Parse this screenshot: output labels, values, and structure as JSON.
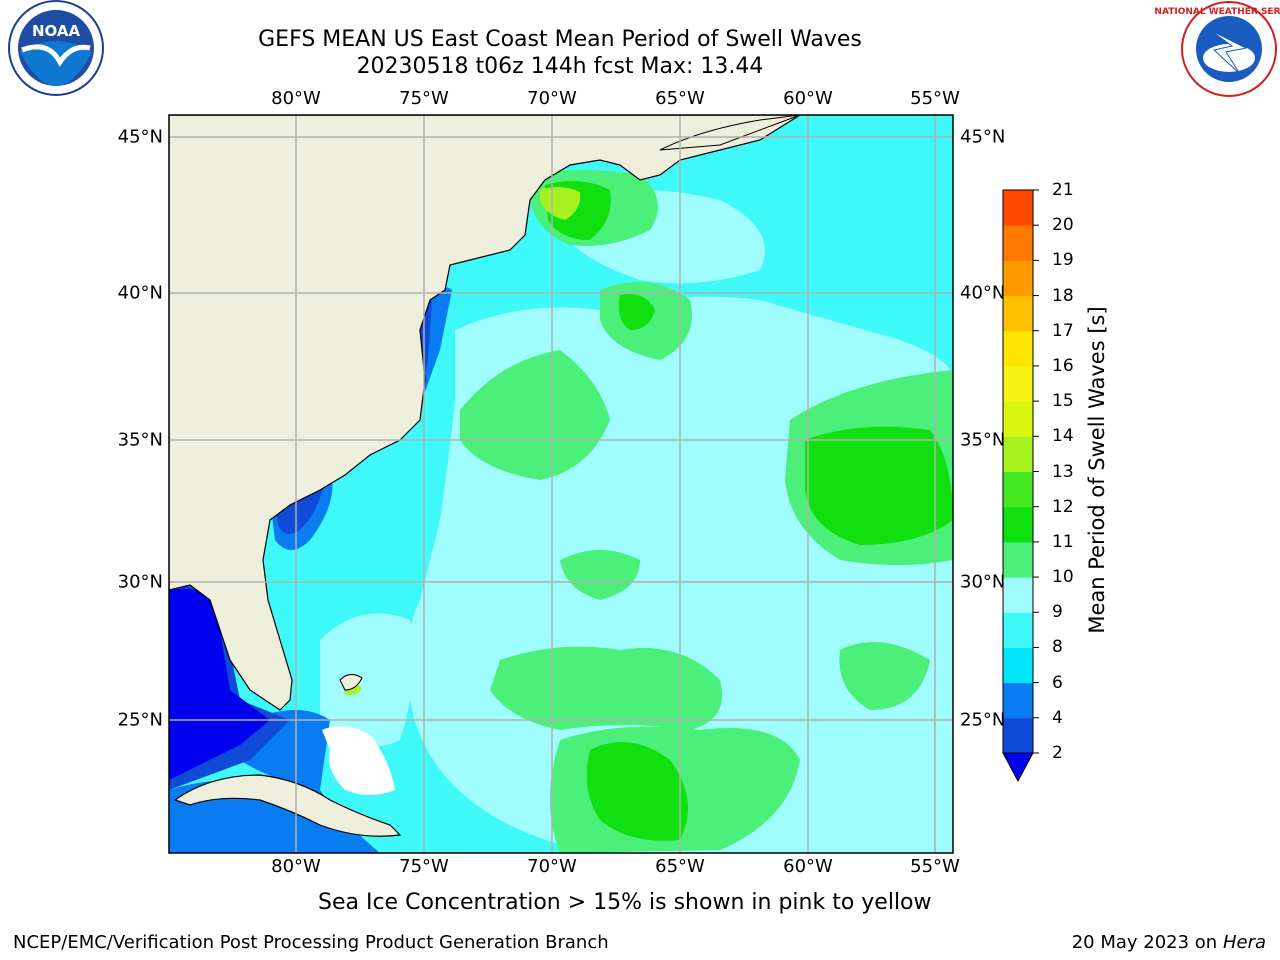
{
  "title_line1": "GEFS MEAN US East Coast Mean Period of Swell Waves",
  "title_line2": "20230518 t06z 144h fcst   Max: 13.44",
  "longitude_labels": [
    "80°W",
    "75°W",
    "70°W",
    "65°W",
    "60°W",
    "55°W"
  ],
  "latitude_labels": [
    "45°N",
    "40°N",
    "35°N",
    "30°N",
    "25°N"
  ],
  "colorbar": {
    "label": "Mean Period of Swell Waves [s]",
    "ticks": [
      "2",
      "4",
      "6",
      "8",
      "9",
      "10",
      "11",
      "12",
      "13",
      "14",
      "15",
      "16",
      "17",
      "18",
      "19",
      "20",
      "21"
    ],
    "colors": [
      "#0f4ad8",
      "#0a7cf2",
      "#00e5f7",
      "#40f8f8",
      "#a0fdfd",
      "#4af07a",
      "#10e010",
      "#46e820",
      "#a7f120",
      "#d8f813",
      "#f6f413",
      "#ffe600",
      "#ffc000",
      "#ff9b00",
      "#ff7a00",
      "#ff4a00",
      "#ff1a00",
      "#ff0000"
    ],
    "extend_color": "#0000f0"
  },
  "ice_note": "Sea Ice Concentration > 15% is shown in pink to yellow",
  "footer_left": "NCEP/EMC/Verification Post Processing Product Generation Branch",
  "footer_date": "20 May 2023 on",
  "footer_machine": "Hera",
  "logos": {
    "left": "NOAA",
    "right": "NATIONAL WEATHER SERVICE"
  },
  "colors": {
    "land": "#eeeedc",
    "ocean_base": "#3ff8f8",
    "grid": "#b0b0b0"
  }
}
